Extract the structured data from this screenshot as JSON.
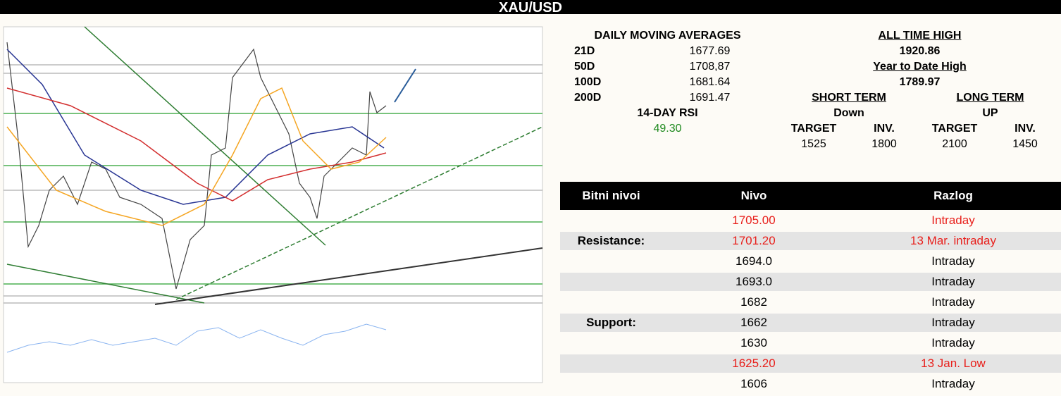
{
  "title": "XAU/USD",
  "moving_averages": {
    "header": "DAILY MOVING AVERAGES",
    "rows": [
      [
        "21D",
        "1677.69"
      ],
      [
        "50D",
        "1708,87"
      ],
      [
        "100D",
        "1681.64"
      ],
      [
        "200D",
        "1691.47"
      ]
    ],
    "rsi_label": "14-DAY RSI",
    "rsi_value": "49.30"
  },
  "highs": {
    "all_time_label": "ALL TIME HIGH",
    "all_time_value": "1920.86",
    "ytd_label": "Year to Date High",
    "ytd_value": "1789.97",
    "short_term": "SHORT TERM",
    "long_term": "LONG TERM",
    "short_dir": "Down",
    "long_dir": "UP",
    "cols": [
      "TARGET",
      "INV.",
      "TARGET",
      "INV."
    ],
    "vals": [
      "1525",
      "1800",
      "2100",
      "1450"
    ]
  },
  "levels": {
    "headers": [
      "Bitni nivoi",
      "Nivo",
      "Razlog"
    ],
    "rows": [
      {
        "nivo": "1705.00",
        "razlog": "Intraday",
        "color": "#e8201c"
      },
      {
        "label": "Resistance:",
        "nivo": "1701.20",
        "razlog": "13 Mar. intraday",
        "color": "#e8201c"
      },
      {
        "nivo": "1694.0",
        "razlog": "Intraday"
      },
      {
        "nivo": "1693.0",
        "razlog": "Intraday"
      },
      {
        "nivo": "1682",
        "razlog": "Intraday"
      },
      {
        "label": "Support:",
        "nivo": "1662",
        "razlog": "Intraday"
      },
      {
        "nivo": "1630",
        "razlog": "Intraday"
      },
      {
        "nivo": "1625.20",
        "razlog": "13 Jan. Low",
        "color": "#e8201c"
      },
      {
        "nivo": "1606",
        "razlog": "Intraday"
      }
    ]
  }
}
